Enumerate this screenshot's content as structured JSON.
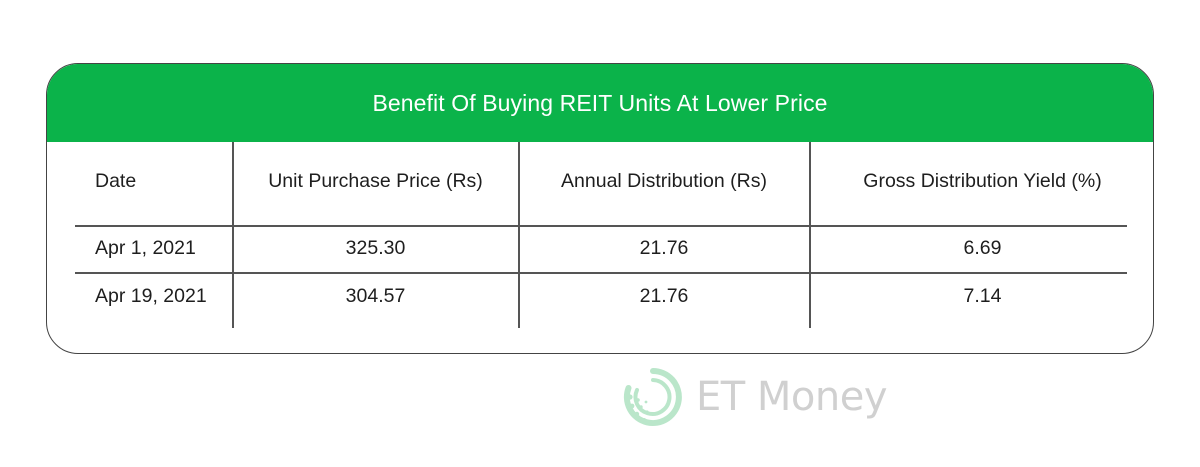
{
  "table": {
    "title": "Benefit Of Buying REIT Units At Lower Price",
    "headers": [
      "Date",
      "Unit Purchase Price (Rs)",
      "Annual Distribution (Rs)",
      "Gross Distribution Yield (%)"
    ],
    "rows": [
      [
        "Apr 1, 2021",
        "325.30",
        "21.76",
        "6.69"
      ],
      [
        "Apr 19, 2021",
        "304.57",
        "21.76",
        "7.14"
      ]
    ]
  },
  "watermark": {
    "text": "ET Money",
    "logo_icon": "et-money-logo-icon"
  },
  "colors": {
    "header_green": "#0bb34a",
    "border": "#444444",
    "watermark": "#6f6f6f"
  }
}
